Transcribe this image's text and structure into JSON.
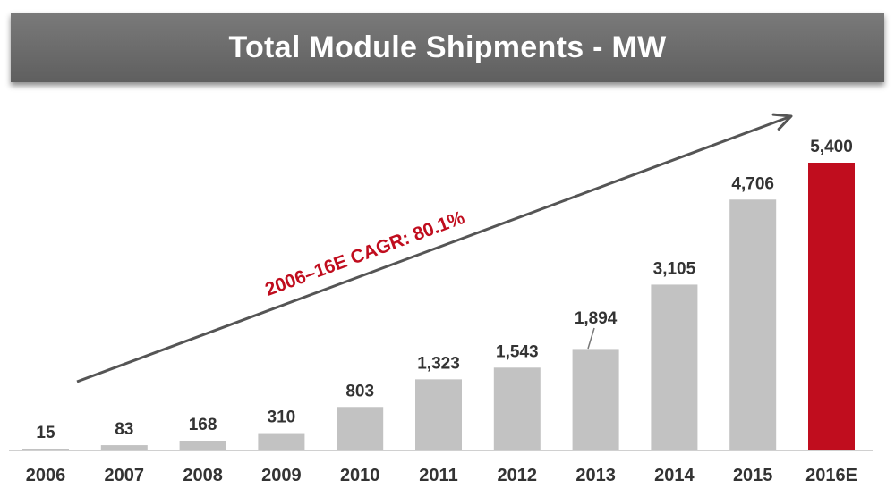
{
  "title": "Total Module Shipments - MW",
  "chart_data": {
    "type": "bar",
    "title": "Total Module Shipments - MW",
    "categories": [
      "2006",
      "2007",
      "2008",
      "2009",
      "2010",
      "2011",
      "2012",
      "2013",
      "2014",
      "2015",
      "2016E"
    ],
    "values": [
      15,
      83,
      168,
      310,
      803,
      1323,
      1543,
      1894,
      3105,
      4706,
      5400
    ],
    "value_labels": [
      "15",
      "83",
      "168",
      "310",
      "803",
      "1,323",
      "1,543",
      "1,894",
      "3,105",
      "4,706",
      "5,400"
    ],
    "highlight_index": 10,
    "ylim": [
      0,
      5400
    ],
    "xlabel": "",
    "ylabel": "",
    "grid": false,
    "annotation": "2006–16E CAGR: 80.1%",
    "colors": {
      "bar": "#c2c2c2",
      "highlight": "#c00d1e",
      "annotation": "#c00d1e",
      "arrow": "#555555",
      "text": "#333333"
    }
  }
}
